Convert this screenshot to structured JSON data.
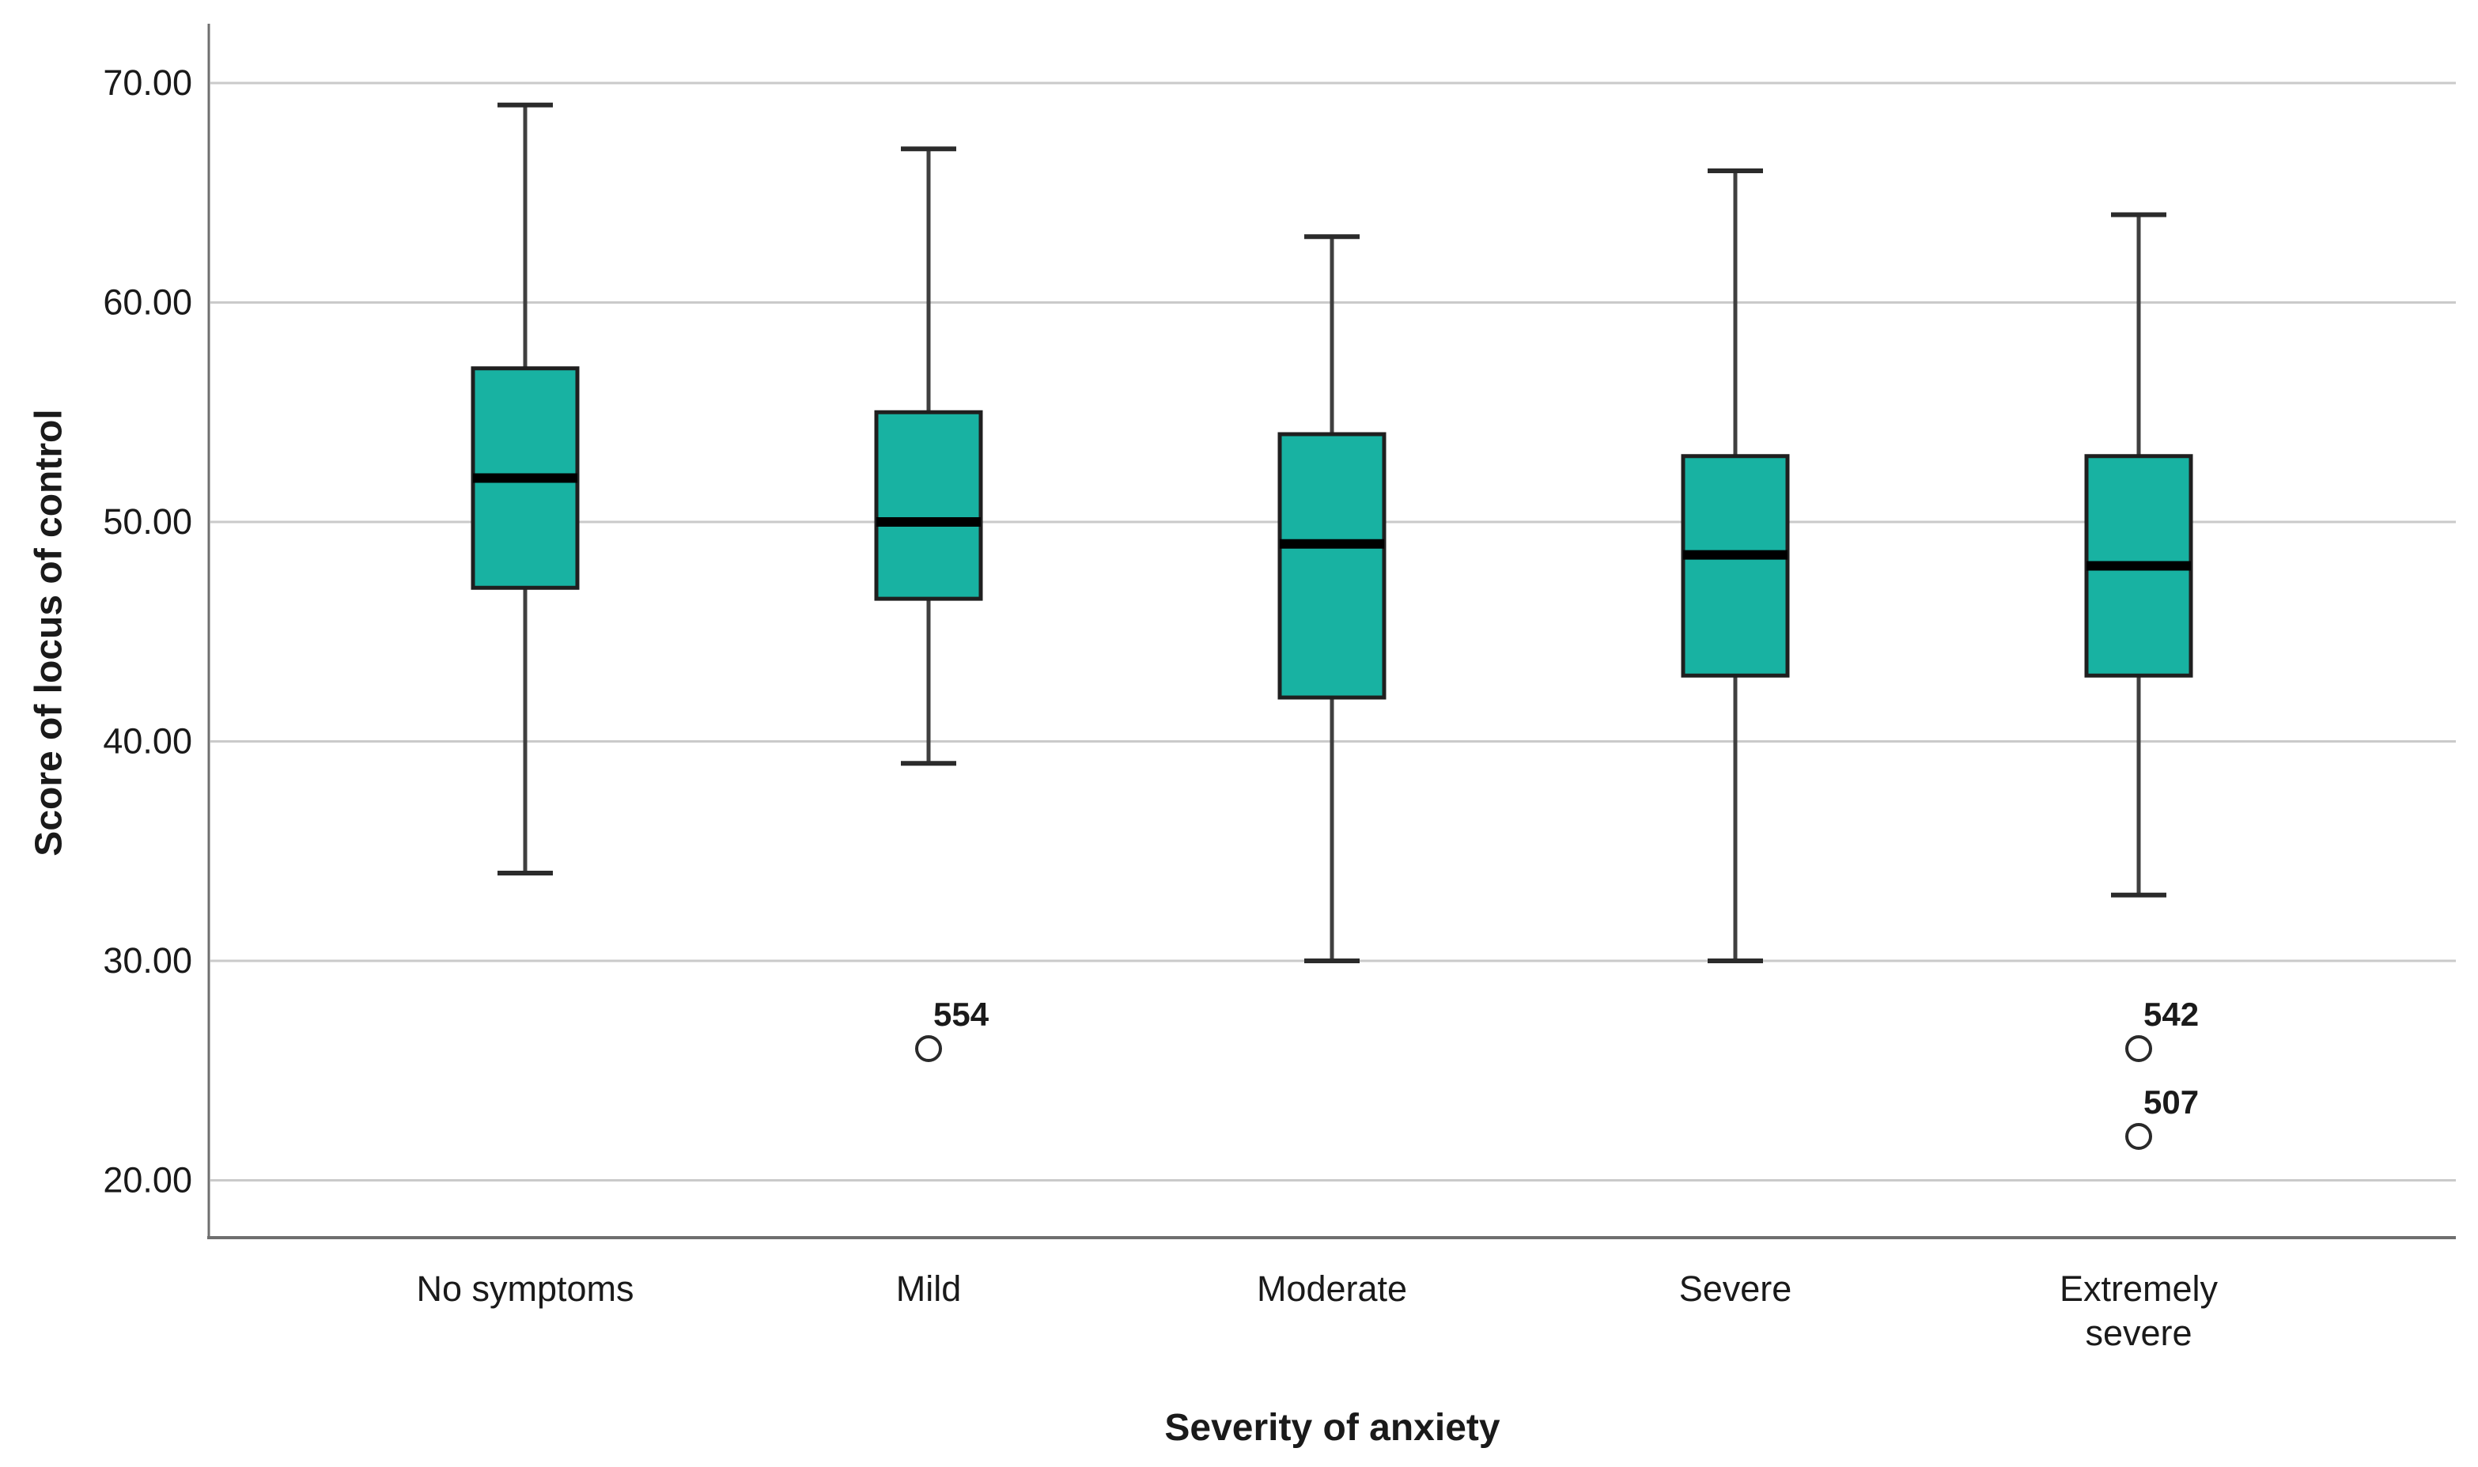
{
  "chart_data": {
    "type": "boxplot",
    "title": "",
    "xlabel": "Severity of anxiety",
    "ylabel": "Score of locus of control",
    "legend": "none",
    "grid": "horizontal",
    "ylim": [
      17.5,
      72.8
    ],
    "y_ticks": [
      {
        "value": 70,
        "label": "70.00"
      },
      {
        "value": 60,
        "label": "60.00"
      },
      {
        "value": 50,
        "label": "50.00"
      },
      {
        "value": 40,
        "label": "40.00"
      },
      {
        "value": 30,
        "label": "30.00"
      },
      {
        "value": 20,
        "label": "20.00"
      }
    ],
    "categories": [
      "No symptoms",
      "Mild",
      "Moderate",
      "Severe",
      "Extremely severe"
    ],
    "series": [
      {
        "category": "No symptoms",
        "label_lines": [
          "No symptoms"
        ],
        "whisker_low": 34,
        "q1": 47,
        "median": 52,
        "q3": 57,
        "whisker_high": 69,
        "outliers": []
      },
      {
        "category": "Mild",
        "label_lines": [
          "Mild"
        ],
        "whisker_low": 39,
        "q1": 46.5,
        "median": 50,
        "q3": 55,
        "whisker_high": 67,
        "outliers": [
          {
            "label": "554",
            "value": 26
          }
        ]
      },
      {
        "category": "Moderate",
        "label_lines": [
          "Moderate"
        ],
        "whisker_low": 30,
        "q1": 42,
        "median": 49,
        "q3": 54,
        "whisker_high": 63,
        "outliers": []
      },
      {
        "category": "Severe",
        "label_lines": [
          "Severe"
        ],
        "whisker_low": 30,
        "q1": 43,
        "median": 48.5,
        "q3": 53,
        "whisker_high": 66,
        "outliers": []
      },
      {
        "category": "Extremely severe",
        "label_lines": [
          "Extremely",
          "severe"
        ],
        "whisker_low": 33,
        "q1": 43,
        "median": 48,
        "q3": 53,
        "whisker_high": 64,
        "outliers": [
          {
            "label": "542",
            "value": 26
          },
          {
            "label": "507",
            "value": 22
          }
        ]
      }
    ],
    "colors": {
      "box_fill": "#18B2A2",
      "box_border": "#1F1F1F",
      "median": "#000000",
      "whisker": "#3F3F3F",
      "whisker_cap": "#2B2B2B",
      "outlier_stroke": "#2A2A2A",
      "gridline": "#CACACA",
      "axis_line": "#6F6F6F",
      "text": "#1A1A1A",
      "background": "#FFFFFF"
    }
  }
}
